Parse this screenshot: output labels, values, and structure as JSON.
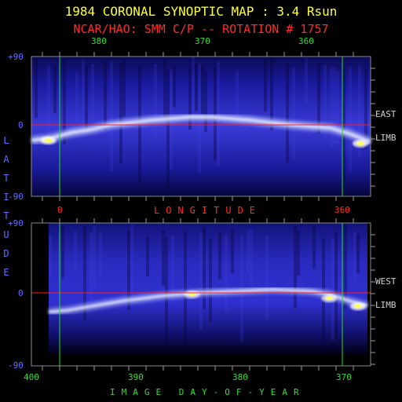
{
  "title": "1984 CORONAL SYNOPTIC MAP : 3.4 Rsun",
  "subtitle": "NCAR/HAO: SMM C/P -- ROTATION # 1757",
  "colors": {
    "title": "#ffff33",
    "subtitle": "#ff2a2a",
    "latitude_axis": "#6a6aff",
    "day_axis": "#33dd33",
    "equator_line": "#ff2020",
    "marker_line": "#22dd22",
    "limb_labels": "#cfcfcf"
  },
  "chart_data": [
    {
      "type": "heatmap",
      "name": "east-limb-map",
      "side_label": [
        "EAST",
        "LIMB"
      ],
      "y_axis_label": "LATITUDE",
      "y_ticks": [
        "+90",
        "0",
        "-90"
      ],
      "ylim": [
        -90,
        90
      ],
      "x_top_label": "",
      "top_ticks": [
        "380",
        "370",
        "360"
      ],
      "bottom_ticks": [
        "0",
        "360"
      ],
      "bottom_label": "LONGITUDE",
      "equator_latitude": 0,
      "streamer_belt_latitude": [
        -18,
        -15,
        -8,
        -4,
        2,
        5,
        8,
        10,
        12,
        12,
        10,
        8,
        5,
        2,
        0,
        -2,
        -10,
        -20
      ],
      "bright_spots": [
        {
          "longitude_fraction": 0.05,
          "latitude": -18,
          "intensity": 1.0
        },
        {
          "longitude_fraction": 0.97,
          "latitude": -22,
          "intensity": 1.0
        }
      ]
    },
    {
      "type": "heatmap",
      "name": "west-limb-map",
      "side_label": [
        "WEST",
        "LIMB"
      ],
      "y_axis_label": "LATITUDE",
      "y_ticks": [
        "+90",
        "0",
        "-90"
      ],
      "ylim": [
        -90,
        90
      ],
      "bottom_ticks": [
        "400",
        "390",
        "380",
        "370"
      ],
      "bottom_label": "IMAGE DAY-OF-YEAR",
      "equator_latitude": 0,
      "streamer_belt_latitude": [
        -22,
        -20,
        -16,
        -12,
        -8,
        -5,
        -2,
        0,
        2,
        3,
        4,
        5,
        6,
        5,
        4,
        0,
        -8,
        -14
      ],
      "bright_spots": [
        {
          "longitude_fraction": 0.45,
          "latitude": 0,
          "intensity": 0.8
        },
        {
          "longitude_fraction": 0.88,
          "latitude": -5,
          "intensity": 0.9
        },
        {
          "longitude_fraction": 0.97,
          "latitude": -15,
          "intensity": 1.0
        }
      ]
    }
  ]
}
